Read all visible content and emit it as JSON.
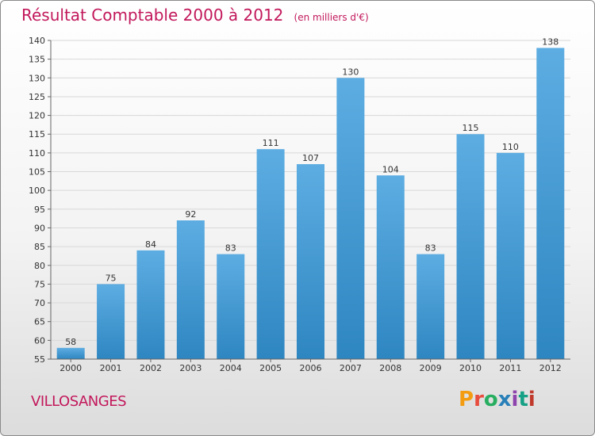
{
  "header": {
    "title": "Résultat Comptable 2000 à 2012",
    "subtitle": "(en milliers d'€)"
  },
  "footer": {
    "commune": "VILLOSANGES",
    "brand": "Proxiti",
    "brand_colors": [
      "#f39c12",
      "#e74c3c",
      "#27ae60",
      "#2980b9",
      "#8e44ad",
      "#16a085",
      "#c0392b"
    ]
  },
  "colors": {
    "bar_top": "#5dade2",
    "bar_bottom": "#2e86c1",
    "text_accent": "#c2185b"
  },
  "chart_data": {
    "type": "bar",
    "categories": [
      "2000",
      "2001",
      "2002",
      "2003",
      "2004",
      "2005",
      "2006",
      "2007",
      "2008",
      "2009",
      "2010",
      "2011",
      "2012"
    ],
    "values": [
      58,
      75,
      84,
      92,
      83,
      111,
      107,
      130,
      104,
      83,
      115,
      110,
      138
    ],
    "ylim": [
      55,
      140
    ],
    "yticks": [
      55,
      60,
      65,
      70,
      75,
      80,
      85,
      90,
      95,
      100,
      105,
      110,
      115,
      120,
      125,
      130,
      135,
      140
    ],
    "grid": true,
    "data_labels": true
  }
}
